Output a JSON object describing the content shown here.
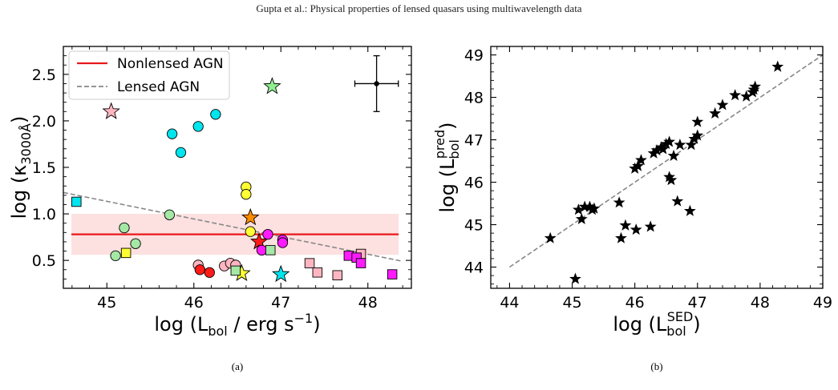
{
  "page_header": "Gupta et al.: Physical properties of lensed quasars using multiwavelength data",
  "chart_data": [
    {
      "type": "scatter",
      "caption": "(a)",
      "xlabel_main": "log (L",
      "xlabel_sub": "bol",
      "xlabel_tail": " / erg s",
      "xlabel_sup": "−1",
      "xlabel_end": ")",
      "ylabel_main": "log (κ",
      "ylabel_sub": "3000Å",
      "ylabel_end": ")",
      "xlim": [
        44.5,
        48.5
      ],
      "ylim": [
        0.2,
        2.8
      ],
      "xticks": [
        45,
        46,
        47,
        48
      ],
      "yticks": [
        0.5,
        1.0,
        1.5,
        2.0,
        2.5
      ],
      "xtick_labels": [
        "45",
        "46",
        "47",
        "48"
      ],
      "ytick_labels": [
        "0.5",
        "1.0",
        "1.5",
        "2.0",
        "2.5"
      ],
      "legend": {
        "position": "top-left",
        "entries": [
          {
            "label": "Nonlensed AGN",
            "color": "#e8191b",
            "style": "solid"
          },
          {
            "label": "Lensed AGN",
            "color": "#888888",
            "style": "dashed"
          }
        ]
      },
      "nonlensed_line": {
        "y": 0.78,
        "band": [
          0.56,
          1.0
        ],
        "band_color": "#fde0e0"
      },
      "lensed_line": {
        "x": [
          44.5,
          48.4
        ],
        "y": [
          1.23,
          0.49
        ]
      },
      "error_bar": {
        "x": 48.1,
        "y": 2.4,
        "xerr": 0.25,
        "yerr": 0.3
      },
      "points": [
        {
          "x": 45.05,
          "y": 2.1,
          "marker": "star",
          "color": "#ffb6c1"
        },
        {
          "x": 46.9,
          "y": 2.37,
          "marker": "star",
          "color": "#90ee90"
        },
        {
          "x": 46.65,
          "y": 0.96,
          "marker": "star",
          "color": "#ff8c00"
        },
        {
          "x": 46.75,
          "y": 0.7,
          "marker": "star",
          "color": "#ff1a1a"
        },
        {
          "x": 46.55,
          "y": 0.36,
          "marker": "star",
          "color": "#ffff33"
        },
        {
          "x": 47.0,
          "y": 0.35,
          "marker": "star",
          "color": "#00e5ee"
        },
        {
          "x": 45.75,
          "y": 1.86,
          "marker": "circle",
          "color": "#00e5ee"
        },
        {
          "x": 45.85,
          "y": 1.66,
          "marker": "circle",
          "color": "#00e5ee"
        },
        {
          "x": 46.05,
          "y": 1.94,
          "marker": "circle",
          "color": "#00e5ee"
        },
        {
          "x": 46.25,
          "y": 2.07,
          "marker": "circle",
          "color": "#00e5ee"
        },
        {
          "x": 46.6,
          "y": 1.29,
          "marker": "circle",
          "color": "#ffff33"
        },
        {
          "x": 46.6,
          "y": 1.21,
          "marker": "circle",
          "color": "#ffff33"
        },
        {
          "x": 46.65,
          "y": 0.81,
          "marker": "circle",
          "color": "#ffff33"
        },
        {
          "x": 45.72,
          "y": 0.99,
          "marker": "circle",
          "color": "#a5e8a5"
        },
        {
          "x": 45.2,
          "y": 0.85,
          "marker": "circle",
          "color": "#a5e8a5"
        },
        {
          "x": 45.33,
          "y": 0.68,
          "marker": "circle",
          "color": "#a5e8a5"
        },
        {
          "x": 45.1,
          "y": 0.55,
          "marker": "circle",
          "color": "#a5e8a5"
        },
        {
          "x": 46.05,
          "y": 0.45,
          "marker": "circle",
          "color": "#ffb6c1"
        },
        {
          "x": 46.35,
          "y": 0.44,
          "marker": "circle",
          "color": "#ffb6c1"
        },
        {
          "x": 46.42,
          "y": 0.47,
          "marker": "circle",
          "color": "#ffb6c1"
        },
        {
          "x": 46.48,
          "y": 0.45,
          "marker": "circle",
          "color": "#ffb6c1"
        },
        {
          "x": 46.07,
          "y": 0.4,
          "marker": "circle",
          "color": "#ff1a1a"
        },
        {
          "x": 46.18,
          "y": 0.37,
          "marker": "circle",
          "color": "#ff1a1a"
        },
        {
          "x": 46.85,
          "y": 0.78,
          "marker": "circle",
          "color": "#ff1aff"
        },
        {
          "x": 47.02,
          "y": 0.72,
          "marker": "circle",
          "color": "#ff1aff"
        },
        {
          "x": 47.02,
          "y": 0.69,
          "marker": "circle",
          "color": "#ff1aff"
        },
        {
          "x": 46.78,
          "y": 0.61,
          "marker": "circle",
          "color": "#ff1aff"
        },
        {
          "x": 44.65,
          "y": 1.13,
          "marker": "square",
          "color": "#00e5ee"
        },
        {
          "x": 45.22,
          "y": 0.58,
          "marker": "square",
          "color": "#ffff33"
        },
        {
          "x": 46.48,
          "y": 0.39,
          "marker": "square",
          "color": "#a5e8a5"
        },
        {
          "x": 46.88,
          "y": 0.61,
          "marker": "square",
          "color": "#a5e8a5"
        },
        {
          "x": 47.33,
          "y": 0.47,
          "marker": "square",
          "color": "#ffb6c1"
        },
        {
          "x": 47.42,
          "y": 0.37,
          "marker": "square",
          "color": "#ffb6c1"
        },
        {
          "x": 47.65,
          "y": 0.34,
          "marker": "square",
          "color": "#ffb6c1"
        },
        {
          "x": 47.92,
          "y": 0.57,
          "marker": "square",
          "color": "#ffb6c1"
        },
        {
          "x": 47.78,
          "y": 0.55,
          "marker": "square",
          "color": "#ff1aff"
        },
        {
          "x": 47.87,
          "y": 0.53,
          "marker": "square",
          "color": "#ff1aff"
        },
        {
          "x": 47.92,
          "y": 0.47,
          "marker": "square",
          "color": "#ff1aff"
        },
        {
          "x": 48.28,
          "y": 0.35,
          "marker": "square",
          "color": "#ff1aff"
        }
      ]
    },
    {
      "type": "scatter",
      "caption": "(b)",
      "xlabel_main": "log (L",
      "xlabel_sub": "bol",
      "xlabel_sup": "SED",
      "xlabel_end": ")",
      "ylabel_main": "log (L",
      "ylabel_sub": "bol",
      "ylabel_sup": "pred",
      "ylabel_end": ")",
      "xlim": [
        43.7,
        49.0
      ],
      "ylim": [
        43.5,
        49.2
      ],
      "xticks": [
        44,
        45,
        46,
        47,
        48,
        49
      ],
      "yticks": [
        44,
        45,
        46,
        47,
        48,
        49
      ],
      "xtick_labels": [
        "44",
        "45",
        "46",
        "47",
        "48",
        "49"
      ],
      "ytick_labels": [
        "44",
        "45",
        "46",
        "47",
        "48",
        "49"
      ],
      "one_to_one_line": {
        "x": [
          44.0,
          49.0
        ],
        "y": [
          44.0,
          49.0
        ],
        "color": "#888888",
        "style": "dashed"
      },
      "marker": "star",
      "color": "#000000",
      "x": [
        44.65,
        45.05,
        45.1,
        45.2,
        45.15,
        45.28,
        45.35,
        45.32,
        45.75,
        45.78,
        45.85,
        46.0,
        46.02,
        46.1,
        46.05,
        46.25,
        46.3,
        46.35,
        46.42,
        46.45,
        46.5,
        46.55,
        46.55,
        46.58,
        46.62,
        46.68,
        46.72,
        46.9,
        46.95,
        47.0,
        47.0,
        46.88,
        47.28,
        47.4,
        47.6,
        47.78,
        47.88,
        47.9,
        47.92,
        48.28
      ],
      "y": [
        44.68,
        43.72,
        45.35,
        45.42,
        45.13,
        45.42,
        45.38,
        45.35,
        45.52,
        44.68,
        44.98,
        46.32,
        44.88,
        46.52,
        46.38,
        44.95,
        46.68,
        46.75,
        46.82,
        46.78,
        46.9,
        46.95,
        46.12,
        46.05,
        46.62,
        45.55,
        46.88,
        46.88,
        47.02,
        47.42,
        47.1,
        45.32,
        47.62,
        47.82,
        48.05,
        48.02,
        48.12,
        48.18,
        48.25,
        48.72
      ]
    }
  ]
}
